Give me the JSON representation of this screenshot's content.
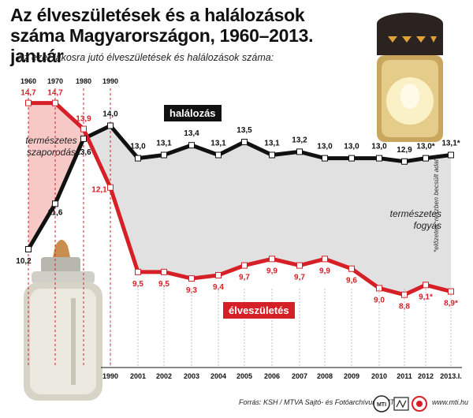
{
  "title": "Az élveszületések és a halálozások száma Magyarországon, 1960–2013. január",
  "subtitle": "Az ezer lakosra jutó élveszületések és halálozások száma:",
  "chart_data": {
    "type": "line",
    "x": [
      "1960",
      "1970",
      "1980",
      "1990",
      "2001",
      "2002",
      "2003",
      "2004",
      "2005",
      "2006",
      "2007",
      "2008",
      "2009",
      "2010",
      "2011",
      "2012",
      "2013.I."
    ],
    "top_axis_labels": [
      "1960",
      "1970",
      "1980",
      "1990"
    ],
    "bottom_axis_labels": [
      "1990",
      "2001",
      "2002",
      "2003",
      "2004",
      "2005",
      "2006",
      "2007",
      "2008",
      "2009",
      "2010",
      "2011",
      "2012",
      "2013.I."
    ],
    "series": [
      {
        "name": "halálozás",
        "color": "#111111",
        "values": [
          10.2,
          11.6,
          13.6,
          14.0,
          13.0,
          13.1,
          13.4,
          13.1,
          13.5,
          13.1,
          13.2,
          13.0,
          13.0,
          13.0,
          12.9,
          13.0,
          13.1
        ],
        "labels": [
          "10,2",
          "11,6",
          "13,6",
          "14,0",
          "13,0",
          "13,1",
          "13,4",
          "13,1",
          "13,5",
          "13,1",
          "13,2",
          "13,0",
          "13,0",
          "13,0",
          "12,9",
          "13,0*",
          "13,1*"
        ]
      },
      {
        "name": "élveszületés",
        "color": "#d62027",
        "values": [
          14.7,
          14.7,
          13.9,
          12.1,
          9.5,
          9.5,
          9.3,
          9.4,
          9.7,
          9.9,
          9.7,
          9.9,
          9.6,
          9.0,
          8.8,
          9.1,
          8.9
        ],
        "labels": [
          "14,7",
          "14,7",
          "13,9",
          "12,1",
          "9,5",
          "9,5",
          "9,3",
          "9,4",
          "9,7",
          "9,9",
          "9,7",
          "9,9",
          "9,6",
          "9,0",
          "8,8",
          "9,1*",
          "8,9*"
        ]
      }
    ],
    "annotations": {
      "natural_increase": "természetes szaporodás",
      "natural_decrease": "természetes fogyás"
    },
    "footnote": "*előzetes, részben becsült adat"
  },
  "source": "Forrás: KSH / MTVA Sajtó- és Fotóarchívum / MTI",
  "site": "www.mti.hu",
  "logos": {
    "mti": "MTI"
  },
  "colors": {
    "deaths": "#111111",
    "births": "#d62027",
    "increase_fill": "#f6c9c6",
    "decrease_fill": "#e1e1e1"
  }
}
